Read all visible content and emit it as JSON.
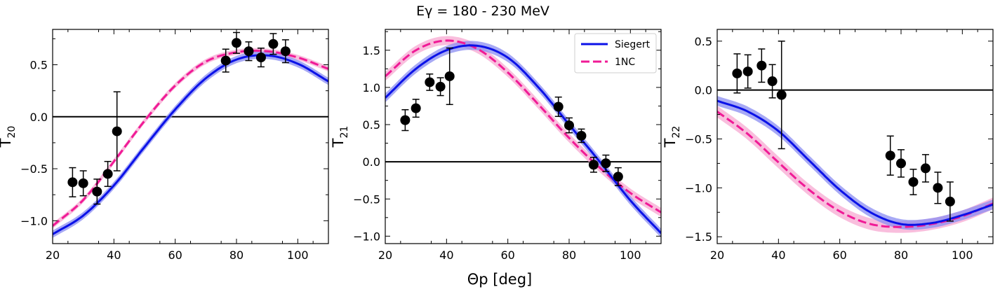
{
  "figure": {
    "title": "Eγ = 180 - 230 MeV",
    "xlabel": "Θp [deg]"
  },
  "colors": {
    "siegert": "#0b12e8",
    "siegert_band": "#8a8cf2",
    "onenc": "#f01a96",
    "onenc_band": "#f7a8d2",
    "data": "#000000"
  },
  "legend": {
    "items": [
      "Siegert",
      "1NC"
    ],
    "placement": "upper-right of middle panel"
  },
  "chart_data": [
    {
      "type": "line",
      "ylabel": "T20",
      "xlim": [
        20,
        110
      ],
      "ylim": [
        -1.22,
        0.84
      ],
      "xticks": [
        20,
        40,
        60,
        80,
        100
      ],
      "yticks": [
        -1.0,
        -0.5,
        0.0,
        0.5
      ],
      "ytick_labels": [
        "−1.0",
        "−0.5",
        "0.0",
        "0.5"
      ],
      "hline": 0,
      "series": [
        {
          "name": "Siegert",
          "style": "solid",
          "band": 0.035,
          "x": [
            20,
            30,
            40,
            50,
            60,
            70,
            80,
            90,
            100,
            110
          ],
          "y": [
            -1.13,
            -0.95,
            -0.66,
            -0.29,
            0.07,
            0.37,
            0.55,
            0.59,
            0.51,
            0.34
          ]
        },
        {
          "name": "1NC",
          "style": "dashed",
          "band": 0.025,
          "x": [
            20,
            30,
            40,
            50,
            60,
            70,
            80,
            90,
            100,
            110
          ],
          "y": [
            -1.05,
            -0.8,
            -0.43,
            -0.04,
            0.3,
            0.53,
            0.62,
            0.63,
            0.57,
            0.46
          ]
        }
      ],
      "points": [
        {
          "x": 26.5,
          "y": -0.63,
          "err": 0.14
        },
        {
          "x": 30,
          "y": -0.64,
          "err": 0.12
        },
        {
          "x": 34.5,
          "y": -0.72,
          "err": 0.12
        },
        {
          "x": 38,
          "y": -0.55,
          "err": 0.12
        },
        {
          "x": 41,
          "y": -0.14,
          "err": 0.38
        },
        {
          "x": 76.5,
          "y": 0.54,
          "err": 0.11
        },
        {
          "x": 80,
          "y": 0.71,
          "err": 0.1
        },
        {
          "x": 84,
          "y": 0.63,
          "err": 0.09
        },
        {
          "x": 88,
          "y": 0.57,
          "err": 0.09
        },
        {
          "x": 92,
          "y": 0.7,
          "err": 0.1
        },
        {
          "x": 96,
          "y": 0.63,
          "err": 0.11
        }
      ]
    },
    {
      "type": "line",
      "ylabel": "T21",
      "xlim": [
        20,
        110
      ],
      "ylim": [
        -1.1,
        1.78
      ],
      "xticks": [
        20,
        40,
        60,
        80,
        100
      ],
      "yticks": [
        -1.0,
        -0.5,
        0.0,
        0.5,
        1.0,
        1.5
      ],
      "ytick_labels": [
        "−1.0",
        "−0.5",
        "0.0",
        "0.5",
        "1.0",
        "1.5"
      ],
      "hline": 0,
      "series": [
        {
          "name": "Siegert",
          "style": "solid",
          "band": 0.06,
          "x": [
            20,
            30,
            40,
            50,
            60,
            70,
            80,
            90,
            100,
            110
          ],
          "y": [
            0.86,
            1.25,
            1.5,
            1.56,
            1.4,
            1.0,
            0.5,
            0.0,
            -0.52,
            -0.96
          ]
        },
        {
          "name": "1NC",
          "style": "dashed",
          "band": 0.06,
          "x": [
            20,
            30,
            40,
            50,
            60,
            70,
            80,
            90,
            100,
            110
          ],
          "y": [
            1.15,
            1.5,
            1.63,
            1.52,
            1.2,
            0.77,
            0.32,
            -0.08,
            -0.42,
            -0.68
          ]
        }
      ],
      "points": [
        {
          "x": 26.5,
          "y": 0.56,
          "err": 0.14
        },
        {
          "x": 30,
          "y": 0.72,
          "err": 0.12
        },
        {
          "x": 34.5,
          "y": 1.07,
          "err": 0.11
        },
        {
          "x": 38,
          "y": 1.01,
          "err": 0.12
        },
        {
          "x": 41,
          "y": 1.15,
          "err": 0.38
        },
        {
          "x": 76.5,
          "y": 0.74,
          "err": 0.13
        },
        {
          "x": 80,
          "y": 0.49,
          "err": 0.1
        },
        {
          "x": 84,
          "y": 0.35,
          "err": 0.09
        },
        {
          "x": 88,
          "y": -0.04,
          "err": 0.1
        },
        {
          "x": 92,
          "y": -0.02,
          "err": 0.11
        },
        {
          "x": 96,
          "y": -0.2,
          "err": 0.12
        }
      ]
    },
    {
      "type": "line",
      "ylabel": "T22",
      "xlim": [
        20,
        110
      ],
      "ylim": [
        -1.57,
        0.62
      ],
      "xticks": [
        20,
        40,
        60,
        80,
        100
      ],
      "yticks": [
        -1.5,
        -1.0,
        -0.5,
        0.0,
        0.5
      ],
      "ytick_labels": [
        "−1.5",
        "−1.0",
        "−0.5",
        "0.0",
        "0.5"
      ],
      "hline": 0,
      "series": [
        {
          "name": "Siegert",
          "style": "solid",
          "band": 0.05,
          "x": [
            20,
            30,
            40,
            50,
            60,
            70,
            80,
            90,
            100,
            110
          ],
          "y": [
            -0.11,
            -0.22,
            -0.42,
            -0.72,
            -1.02,
            -1.25,
            -1.37,
            -1.36,
            -1.28,
            -1.17
          ]
        },
        {
          "name": "1NC",
          "style": "dashed",
          "band": 0.06,
          "x": [
            20,
            30,
            40,
            50,
            60,
            70,
            80,
            90,
            100,
            110
          ],
          "y": [
            -0.22,
            -0.45,
            -0.74,
            -1.02,
            -1.24,
            -1.37,
            -1.4,
            -1.37,
            -1.29,
            -1.16
          ]
        }
      ],
      "points": [
        {
          "x": 26.5,
          "y": 0.17,
          "err": 0.2
        },
        {
          "x": 30,
          "y": 0.19,
          "err": 0.17
        },
        {
          "x": 34.5,
          "y": 0.25,
          "err": 0.17
        },
        {
          "x": 38,
          "y": 0.09,
          "err": 0.17
        },
        {
          "x": 41,
          "y": -0.05,
          "err": 0.55
        },
        {
          "x": 76.5,
          "y": -0.67,
          "err": 0.2
        },
        {
          "x": 80,
          "y": -0.75,
          "err": 0.14
        },
        {
          "x": 84,
          "y": -0.94,
          "err": 0.13
        },
        {
          "x": 88,
          "y": -0.8,
          "err": 0.14
        },
        {
          "x": 92,
          "y": -1.0,
          "err": 0.16
        },
        {
          "x": 96,
          "y": -1.14,
          "err": 0.2
        }
      ]
    }
  ]
}
